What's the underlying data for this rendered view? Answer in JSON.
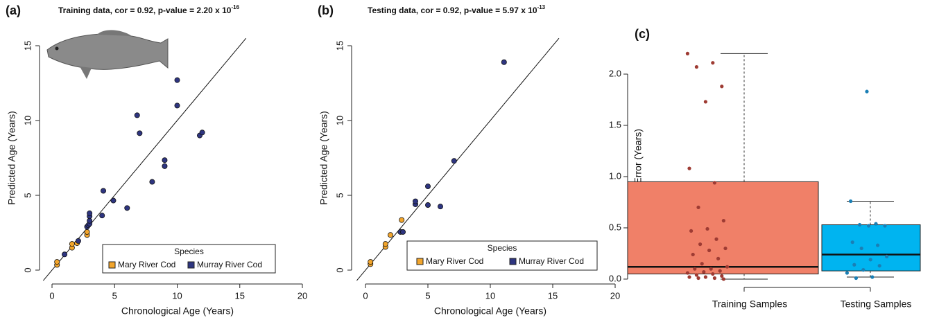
{
  "chart_data": [
    {
      "type": "scatter",
      "panel_label": "(a)",
      "title": "Training data, cor = 0.92, p-value = 2.20 x 10",
      "title_exponent": "-16",
      "xlabel": "Chronological Age (Years)",
      "ylabel": "Predicted Age (Years)",
      "xlim": [
        -0.8,
        20
      ],
      "ylim": [
        -0.7,
        15.5
      ],
      "xticks": [
        0,
        5,
        10,
        15,
        20
      ],
      "yticks": [
        0,
        5,
        10,
        15
      ],
      "identity_line": true,
      "legend_title": "Species",
      "series": [
        {
          "name": "Mary River Cod",
          "color": "#f2a52c",
          "x": [
            0.4,
            0.4,
            1.6,
            1.6,
            2.0,
            2.8,
            2.8
          ],
          "values": [
            0.35,
            0.55,
            1.5,
            1.75,
            1.8,
            2.35,
            2.55
          ]
        },
        {
          "name": "Murray River Cod",
          "color": "#2e3580",
          "x": [
            1.0,
            2.1,
            2.8,
            2.9,
            3.0,
            3.0,
            3.0,
            3.0,
            4.0,
            4.1,
            4.9,
            6.0,
            6.8,
            7.0,
            8.0,
            9.0,
            9.0,
            10.0,
            10.0,
            11.8,
            12.0
          ],
          "values": [
            1.05,
            1.95,
            2.9,
            3.0,
            3.1,
            3.3,
            3.6,
            3.8,
            3.65,
            5.3,
            4.65,
            4.15,
            10.35,
            9.15,
            5.9,
            6.95,
            7.35,
            11.0,
            12.7,
            9.0,
            9.2
          ]
        }
      ]
    },
    {
      "type": "scatter",
      "panel_label": "(b)",
      "title": "Testing data, cor = 0.92, p-value = 5.97 x 10",
      "title_exponent": "-13",
      "xlabel": "Chronological Age (Years)",
      "ylabel": "Predicted Age (Years)",
      "xlim": [
        -0.8,
        20
      ],
      "ylim": [
        -0.7,
        15.5
      ],
      "xticks": [
        0,
        5,
        10,
        15,
        20
      ],
      "yticks": [
        0,
        5,
        10,
        15
      ],
      "identity_line": true,
      "legend_title": "Species",
      "series": [
        {
          "name": "Mary River Cod",
          "color": "#f2a52c",
          "x": [
            0.4,
            0.4,
            1.6,
            1.6,
            2.0,
            2.9
          ],
          "values": [
            0.4,
            0.55,
            1.55,
            1.75,
            2.35,
            3.35
          ]
        },
        {
          "name": "Murray River Cod",
          "color": "#2e3580",
          "x": [
            2.8,
            3.0,
            4.0,
            4.0,
            5.0,
            5.0,
            6.0,
            7.1,
            11.1
          ],
          "values": [
            2.55,
            2.55,
            4.4,
            4.6,
            4.35,
            5.6,
            4.25,
            7.3,
            13.9
          ]
        }
      ]
    },
    {
      "type": "box",
      "panel_label": "(c)",
      "ylabel": "Absolute Error (Years)",
      "ylim": [
        -0.03,
        2.25
      ],
      "yticks": [
        {
          "value": 0,
          "label": "0.0"
        },
        {
          "value": 0.5,
          "label": "0.5"
        },
        {
          "value": 1,
          "label": "1.0"
        },
        {
          "value": 1.5,
          "label": "1.5"
        },
        {
          "value": 2,
          "label": "2.0"
        }
      ],
      "categories": [
        "Training Samples",
        "Testing Samples"
      ],
      "box_colors": [
        "#f08068",
        "#00b4f0"
      ],
      "point_colors": [
        "#9e3b33",
        "#1a7fb5"
      ],
      "stats": [
        [
          0.0,
          0.05,
          0.12,
          0.95,
          2.2
        ],
        [
          0.02,
          0.08,
          0.24,
          0.53,
          0.76
        ]
      ],
      "points": [
        [
          2.2,
          2.11,
          2.07,
          1.88,
          1.73,
          1.08,
          0.94,
          0.7,
          0.57,
          0.49,
          0.47,
          0.39,
          0.34,
          0.3,
          0.28,
          0.24,
          0.2,
          0.15,
          0.12,
          0.1,
          0.1,
          0.08,
          0.07,
          0.06,
          0.05,
          0.04,
          0.03,
          0.02,
          0.02,
          0.01,
          0.01,
          0.0
        ],
        [
          1.83,
          0.76,
          0.54,
          0.53,
          0.52,
          0.52,
          0.36,
          0.33,
          0.3,
          0.22,
          0.19,
          0.14,
          0.13,
          0.09,
          0.06,
          0.02,
          0.01
        ]
      ]
    }
  ]
}
